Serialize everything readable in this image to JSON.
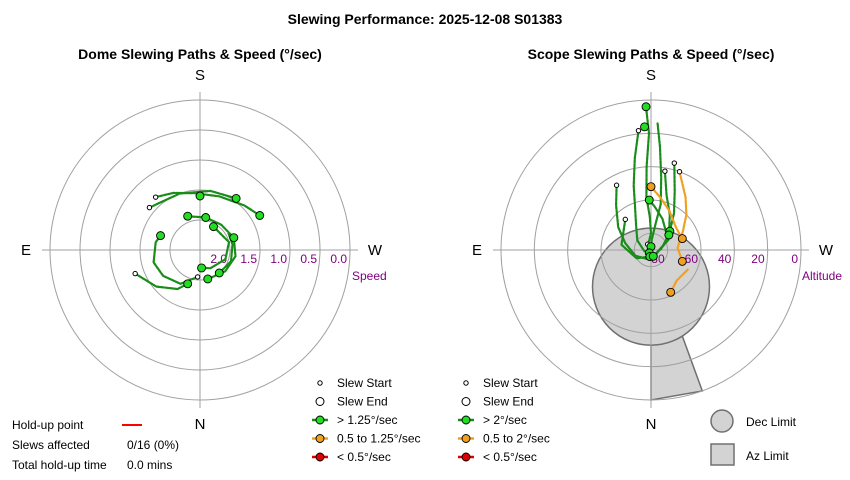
{
  "title": "Slewing Performance: 2025-12-08 S01383",
  "colors": {
    "ring": "#a0a0a0",
    "axis": "#a0a0a0",
    "tick_label": "#800080",
    "fast": "#1a8c1a",
    "fast_fill": "#22dd22",
    "medium": "#f0a020",
    "medium_fill": "#f0a020",
    "slow": "#dd0000",
    "slow_fill": "#dd0000",
    "limit_fill": "#d3d3d3",
    "limit_stroke": "#707070",
    "holdup_line": "#ff0000"
  },
  "chart_data": [
    {
      "type": "polar",
      "title": "Dome Slewing Paths & Speed (°/sec)",
      "compass": {
        "top": "S",
        "bottom": "N",
        "left": "E",
        "right": "W"
      },
      "radial_label": "Speed",
      "radial_range": [
        2.5,
        0.0
      ],
      "radial_ticks": [
        "2.0",
        "1.5",
        "1.0",
        "0.5",
        "0.0"
      ],
      "radial_tick_values": [
        2.0,
        1.5,
        1.0,
        0.5,
        0.0
      ],
      "ring_values": [
        2.0,
        1.5,
        1.0,
        0.5,
        0.0
      ],
      "legend": [
        {
          "label": "Slew Start",
          "marker": "start"
        },
        {
          "label": "Slew End",
          "marker": "end"
        },
        {
          "label": "> 1.25°/sec",
          "marker": "fast"
        },
        {
          "label": "0.5 to 1.25°/sec",
          "marker": "medium"
        },
        {
          "label": "< 0.5°/sec",
          "marker": "slow"
        }
      ],
      "series": [
        {
          "speed": "fast",
          "path": [
            [
              -70,
              1.8
            ],
            [
              -80,
              1.75
            ],
            [
              -105,
              1.7
            ],
            [
              -125,
              1.75
            ],
            [
              -150,
              1.85
            ],
            [
              -175,
              2.05
            ]
          ]
        },
        {
          "speed": "fast",
          "path": [
            [
              -20,
              1.9
            ],
            [
              10,
              1.95
            ],
            [
              40,
              1.95
            ],
            [
              70,
              1.9
            ],
            [
              100,
              1.9
            ],
            [
              130,
              1.95
            ],
            [
              165,
              2.0
            ]
          ]
        },
        {
          "speed": "fast",
          "path": [
            [
              30,
              2.05
            ],
            [
              75,
              2.0
            ],
            [
              110,
              2.05
            ],
            [
              150,
              2.15
            ],
            [
              175,
              2.2
            ]
          ]
        },
        {
          "speed": "fast",
          "path": [
            [
              -40,
              1.35
            ],
            [
              -25,
              1.45
            ],
            [
              -5,
              1.55
            ],
            [
              20,
              1.55
            ],
            [
              45,
              1.45
            ],
            [
              60,
              1.35
            ]
          ]
        },
        {
          "speed": "fast",
          "path": [
            [
              -50,
              1.4
            ],
            [
              -20,
              1.5
            ],
            [
              10,
              1.5
            ],
            [
              35,
              1.45
            ]
          ]
        },
        {
          "speed": "fast",
          "path": [
            [
              -110,
              1.35
            ],
            [
              -130,
              1.55
            ],
            [
              -150,
              1.75
            ],
            [
              -160,
              1.9
            ]
          ]
        },
        {
          "speed": "fast",
          "path": [
            [
              0,
              1.55
            ],
            [
              0,
              1.65
            ]
          ]
        },
        {
          "speed": "fast",
          "path": [
            [
              60,
              1.95
            ],
            [
              80,
              1.95
            ],
            [
              110,
              1.95
            ],
            [
              140,
              2.0
            ]
          ]
        }
      ],
      "points": [
        {
          "az": 0,
          "r": 1.6,
          "role": "end",
          "speed": "fast"
        },
        {
          "az": -70,
          "r": 1.8,
          "role": "end",
          "speed": "fast"
        },
        {
          "az": -40,
          "r": 1.35,
          "role": "start",
          "speed": "fast"
        },
        {
          "az": -50,
          "r": 1.4,
          "role": "start",
          "speed": "fast"
        },
        {
          "az": 60,
          "r": 1.35,
          "role": "end",
          "speed": "fast"
        },
        {
          "az": 35,
          "r": 1.45,
          "role": "end",
          "speed": "fast"
        },
        {
          "az": -20,
          "r": 1.9,
          "role": "end",
          "speed": "fast"
        },
        {
          "az": 10,
          "r": 1.95,
          "role": "end",
          "speed": "fast"
        },
        {
          "az": 30,
          "r": 2.05,
          "role": "end",
          "speed": "fast"
        },
        {
          "az": 140,
          "r": 2.0,
          "role": "end",
          "speed": "fast"
        },
        {
          "az": 165,
          "r": 2.0,
          "role": "end",
          "speed": "fast"
        },
        {
          "az": 175,
          "r": 2.2,
          "role": "end",
          "speed": "fast"
        },
        {
          "az": -110,
          "r": 1.35,
          "role": "start",
          "speed": "fast"
        },
        {
          "az": -175,
          "r": 2.05,
          "role": "start",
          "speed": "fast"
        },
        {
          "az": 70,
          "r": 1.9,
          "role": "end",
          "speed": "fast"
        },
        {
          "az": -160,
          "r": 1.9,
          "role": "end",
          "speed": "fast"
        }
      ]
    },
    {
      "type": "polar",
      "title": "Scope Slewing Paths & Speed (°/sec)",
      "compass": {
        "top": "S",
        "bottom": "N",
        "left": "E",
        "right": "W"
      },
      "radial_label": "Altitude",
      "radial_range": [
        90,
        0
      ],
      "radial_ticks": [
        "80",
        "60",
        "40",
        "20",
        "0"
      ],
      "radial_tick_values": [
        80,
        60,
        40,
        20,
        0
      ],
      "ring_values": [
        80,
        60,
        40,
        20,
        0
      ],
      "legend": [
        {
          "label": "Slew Start",
          "marker": "start"
        },
        {
          "label": "Slew End",
          "marker": "end"
        },
        {
          "label": "> 2°/sec",
          "marker": "fast"
        },
        {
          "label": "0.5 to 2°/sec",
          "marker": "medium"
        },
        {
          "label": "< 0.5°/sec",
          "marker": "slow"
        }
      ],
      "limits_legend": [
        {
          "label": "Dec Limit",
          "shape": "circle"
        },
        {
          "label": "Az Limit",
          "shape": "square"
        }
      ],
      "dec_limit": {
        "az": 180,
        "alt": 68,
        "radius_alt": 13
      },
      "az_limit": {
        "az_from": 160,
        "az_to": 180,
        "alt_from": 64,
        "alt_to": 0
      },
      "series": [
        {
          "speed": "fast",
          "path": [
            [
              -2,
              4
            ],
            [
              -1,
              20
            ],
            [
              -3,
              40
            ],
            [
              -5,
              58
            ],
            [
              -2,
              70
            ],
            [
              0,
              80
            ],
            [
              -10,
              84
            ],
            [
              -30,
              86
            ]
          ]
        },
        {
          "speed": "fast",
          "path": [
            [
              3,
              14
            ],
            [
              5,
              28
            ],
            [
              8,
              46
            ],
            [
              12,
              62
            ],
            [
              10,
              74
            ],
            [
              4,
              84
            ],
            [
              0,
              88
            ]
          ]
        },
        {
          "speed": "fast",
          "path": [
            [
              -6,
              18
            ],
            [
              -10,
              34
            ],
            [
              -15,
              50
            ],
            [
              -20,
              62
            ],
            [
              -30,
              72
            ],
            [
              -55,
              80
            ],
            [
              -100,
              86
            ],
            [
              -150,
              88
            ]
          ]
        },
        {
          "speed": "fast",
          "path": [
            [
              -28,
              46
            ],
            [
              -38,
              56
            ],
            [
              -55,
              66
            ],
            [
              -75,
              74
            ],
            [
              -110,
              80
            ],
            [
              -150,
              84
            ]
          ]
        },
        {
          "speed": "fast",
          "path": [
            [
              15,
              36
            ],
            [
              22,
              52
            ],
            [
              32,
              64
            ],
            [
              45,
              74
            ],
            [
              70,
              82
            ],
            [
              120,
              86
            ],
            [
              170,
              88
            ]
          ]
        },
        {
          "speed": "fast",
          "path": [
            [
              10,
              42
            ],
            [
              16,
              56
            ],
            [
              28,
              66
            ],
            [
              50,
              76
            ],
            [
              85,
              84
            ]
          ]
        },
        {
          "speed": "fast",
          "path": [
            [
              -40,
              66
            ],
            [
              -80,
              72
            ],
            [
              -120,
              80
            ],
            [
              -170,
              86
            ]
          ]
        },
        {
          "speed": "fast",
          "path": [
            [
              -2,
              60
            ],
            [
              5,
              64
            ],
            [
              20,
              70
            ],
            [
              60,
              78
            ],
            [
              160,
              86
            ]
          ]
        },
        {
          "speed": "medium",
          "path": [
            [
              20,
              40
            ],
            [
              33,
              52
            ],
            [
              45,
              60
            ],
            [
              60,
              68
            ],
            [
              85,
              74
            ],
            [
              110,
              70
            ]
          ]
        },
        {
          "speed": "medium",
          "path": [
            [
              0,
              52
            ],
            [
              10,
              58
            ],
            [
              25,
              64
            ],
            [
              50,
              70
            ],
            [
              70,
              70
            ]
          ]
        },
        {
          "speed": "medium",
          "path": [
            [
              118,
              65
            ],
            [
              140,
              66
            ],
            [
              155,
              62
            ]
          ]
        }
      ],
      "points": [
        {
          "az": -2,
          "r": 4,
          "role": "end",
          "speed": "fast"
        },
        {
          "az": -3,
          "r": 16,
          "role": "end",
          "speed": "fast"
        },
        {
          "az": -30,
          "r": 86,
          "role": "start",
          "speed": "fast"
        },
        {
          "az": 0,
          "r": 88,
          "role": "end",
          "speed": "fast"
        },
        {
          "az": -150,
          "r": 88,
          "role": "end",
          "speed": "fast"
        },
        {
          "az": -6,
          "r": 18,
          "role": "start",
          "speed": "fast"
        },
        {
          "az": -28,
          "r": 46,
          "role": "start",
          "speed": "medium"
        },
        {
          "az": 15,
          "r": 36,
          "role": "start",
          "speed": "fast"
        },
        {
          "az": 10,
          "r": 42,
          "role": "start",
          "speed": "fast"
        },
        {
          "az": 20,
          "r": 40,
          "role": "start",
          "speed": "medium"
        },
        {
          "az": 0,
          "r": 52,
          "role": "end",
          "speed": "medium"
        },
        {
          "az": -2,
          "r": 60,
          "role": "end",
          "speed": "fast"
        },
        {
          "az": 45,
          "r": 74,
          "role": "end",
          "speed": "fast"
        },
        {
          "az": 50,
          "r": 76,
          "role": "end",
          "speed": "fast"
        },
        {
          "az": 70,
          "r": 70,
          "role": "end",
          "speed": "medium"
        },
        {
          "az": 110,
          "r": 70,
          "role": "end",
          "speed": "medium"
        },
        {
          "az": 155,
          "r": 62,
          "role": "end",
          "speed": "medium"
        },
        {
          "az": -40,
          "r": 66,
          "role": "start",
          "speed": "fast"
        },
        {
          "az": -170,
          "r": 86,
          "role": "end",
          "speed": "fast"
        },
        {
          "az": 160,
          "r": 86,
          "role": "end",
          "speed": "fast"
        }
      ]
    }
  ],
  "holdup": {
    "point_label": "Hold-up point",
    "slews_label": "Slews affected",
    "slews_value": "0/16 (0%)",
    "time_label": "Total hold-up time",
    "time_value": "0.0 mins"
  }
}
